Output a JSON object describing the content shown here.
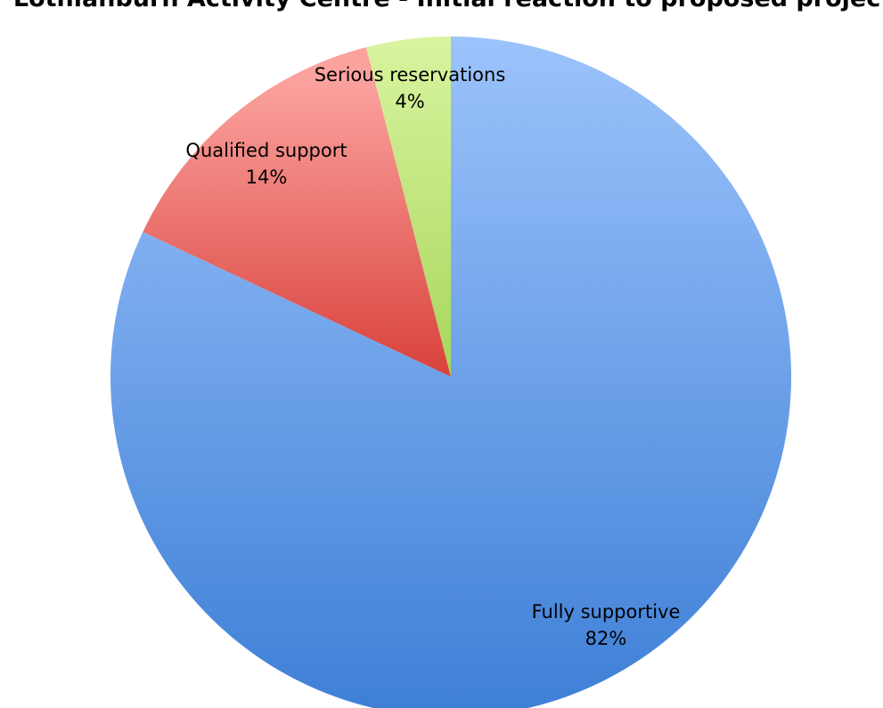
{
  "chart_data": {
    "type": "pie",
    "title": "Lothianburn Activity Centre - Initial reaction to proposed project",
    "slices": [
      {
        "label": "Fully supportive",
        "value": 82,
        "value_label": "82%",
        "color_top": "#9cc3fb",
        "color_bottom": "#3d7fd6"
      },
      {
        "label": "Qualified support",
        "value": 14,
        "value_label": "14%",
        "color_top": "#fba29e",
        "color_bottom": "#d9413b"
      },
      {
        "label": "Serious reservations",
        "value": 4,
        "value_label": "4%",
        "color_top": "#d9f49f",
        "color_bottom": "#a8d65c"
      }
    ],
    "legend": "none",
    "start": "12 o'clock",
    "direction": "clockwise"
  }
}
